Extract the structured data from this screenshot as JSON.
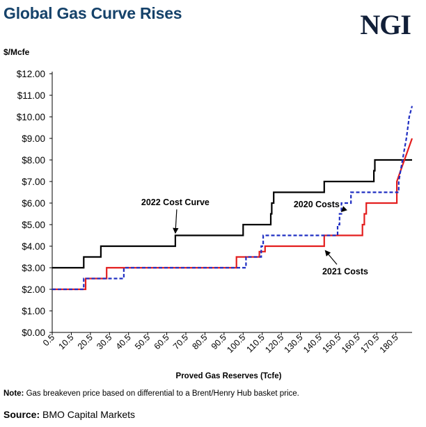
{
  "header": {
    "title": "Global Gas Curve Rises",
    "logo_text": "NGI"
  },
  "footer": {
    "note_label": "Note:",
    "note_text": " Gas breakeven price based on differential to a Brent/Henry Hub basket price.",
    "source_label": "Source:",
    "source_text": " BMO Capital Markets"
  },
  "chart_data": {
    "type": "line",
    "title": "Global Gas Curve Rises",
    "ylabel": "$/Mcfe",
    "xlabel": "Proved Gas Reserves (Tcfe)",
    "xlim": [
      0.5,
      189
    ],
    "ylim": [
      0,
      12
    ],
    "x_ticks": [
      0.5,
      10.5,
      20.5,
      30.5,
      40.5,
      50.5,
      60.5,
      70.5,
      80.5,
      90.5,
      100.5,
      110.5,
      120.5,
      130.5,
      140.5,
      150.5,
      160.5,
      170.5,
      180.5
    ],
    "y_ticks": [
      "$0.00",
      "$1.00",
      "$2.00",
      "$3.00",
      "$4.00",
      "$5.00",
      "$6.00",
      "$7.00",
      "$8.00",
      "$9.00",
      "$10.00",
      "$11.00",
      "$12.00"
    ],
    "grid": false,
    "colors": {
      "2022": "#000000",
      "2021": "#e31e1e",
      "2020": "#1f2ec2"
    },
    "series": [
      {
        "name": "2022 Cost Curve",
        "style": "solid",
        "color": "#000000",
        "points": [
          [
            0.5,
            3.0
          ],
          [
            17,
            3.0
          ],
          [
            17,
            3.5
          ],
          [
            26,
            3.5
          ],
          [
            26,
            4.0
          ],
          [
            65,
            4.0
          ],
          [
            65,
            4.5
          ],
          [
            100.5,
            4.5
          ],
          [
            100.5,
            5.0
          ],
          [
            115,
            5.0
          ],
          [
            115,
            5.5
          ],
          [
            115.5,
            5.5
          ],
          [
            115.5,
            6.0
          ],
          [
            116.5,
            6.0
          ],
          [
            116.5,
            6.5
          ],
          [
            143,
            6.5
          ],
          [
            143,
            7.0
          ],
          [
            169,
            7.0
          ],
          [
            169,
            7.5
          ],
          [
            169.5,
            7.5
          ],
          [
            169.5,
            8.0
          ],
          [
            189,
            8.0
          ]
        ]
      },
      {
        "name": "2021 Costs",
        "style": "solid",
        "color": "#e31e1e",
        "points": [
          [
            0.5,
            2.0
          ],
          [
            18,
            2.0
          ],
          [
            18,
            2.5
          ],
          [
            29,
            2.5
          ],
          [
            29,
            3.0
          ],
          [
            97,
            3.0
          ],
          [
            97,
            3.5
          ],
          [
            109,
            3.5
          ],
          [
            109,
            3.75
          ],
          [
            112,
            3.75
          ],
          [
            112,
            4.0
          ],
          [
            143,
            4.0
          ],
          [
            143,
            4.5
          ],
          [
            163,
            4.5
          ],
          [
            163,
            5.0
          ],
          [
            164,
            5.0
          ],
          [
            164,
            5.5
          ],
          [
            165,
            5.5
          ],
          [
            165,
            6.0
          ],
          [
            181,
            6.0
          ],
          [
            181,
            7.0
          ],
          [
            183,
            7.5
          ],
          [
            185,
            8.0
          ],
          [
            187,
            8.5
          ],
          [
            189,
            9.0
          ]
        ]
      },
      {
        "name": "2020 Costs",
        "style": "dashed",
        "color": "#1f2ec2",
        "points": [
          [
            0.5,
            2.0
          ],
          [
            17,
            2.0
          ],
          [
            17,
            2.5
          ],
          [
            38,
            2.5
          ],
          [
            38,
            3.0
          ],
          [
            102,
            3.0
          ],
          [
            102,
            3.5
          ],
          [
            110,
            3.5
          ],
          [
            110,
            4.0
          ],
          [
            111,
            4.0
          ],
          [
            111,
            4.5
          ],
          [
            150,
            4.5
          ],
          [
            150,
            5.0
          ],
          [
            151,
            5.0
          ],
          [
            151,
            5.5
          ],
          [
            152,
            5.5
          ],
          [
            152,
            6.0
          ],
          [
            157,
            6.0
          ],
          [
            157,
            6.5
          ],
          [
            182,
            6.5
          ],
          [
            182,
            7.0
          ],
          [
            183,
            7.5
          ],
          [
            184,
            8.0
          ],
          [
            185,
            8.5
          ],
          [
            186,
            9.0
          ],
          [
            187.5,
            10.0
          ],
          [
            189,
            10.5
          ]
        ]
      }
    ],
    "annotations": [
      {
        "text": "2022 Cost Curve",
        "x": 65,
        "y": 5.9,
        "arrow_to": [
          65,
          4.6
        ]
      },
      {
        "text": "2020 Costs",
        "x": 139,
        "y": 5.8,
        "arrow_to": [
          152,
          5.6
        ]
      },
      {
        "text": "2021 Costs",
        "x": 154,
        "y": 2.7,
        "arrow_to": [
          143.5,
          3.8
        ]
      }
    ]
  }
}
